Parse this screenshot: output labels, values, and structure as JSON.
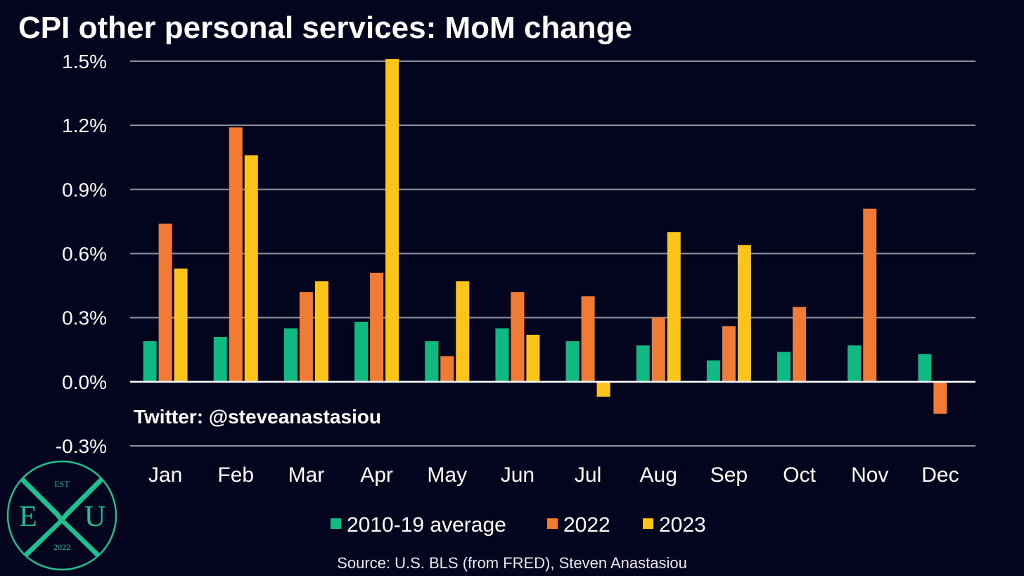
{
  "chart_data": {
    "type": "bar",
    "title": "CPI other personal services: MoM change",
    "categories": [
      "Jan",
      "Feb",
      "Mar",
      "Apr",
      "May",
      "Jun",
      "Jul",
      "Aug",
      "Sep",
      "Oct",
      "Nov",
      "Dec"
    ],
    "series": [
      {
        "name": "2010-19 average",
        "color": "#10b981",
        "values": [
          0.19,
          0.21,
          0.25,
          0.28,
          0.19,
          0.25,
          0.19,
          0.17,
          0.1,
          0.14,
          0.17,
          0.13
        ]
      },
      {
        "name": "2022",
        "color": "#f07b34",
        "values": [
          0.74,
          1.19,
          0.42,
          0.51,
          0.12,
          0.42,
          0.4,
          0.3,
          0.26,
          0.35,
          0.81,
          -0.15
        ]
      },
      {
        "name": "2023",
        "color": "#fcc419",
        "values": [
          0.53,
          1.06,
          0.47,
          1.51,
          0.47,
          0.22,
          -0.07,
          0.7,
          0.64,
          null,
          null,
          null
        ]
      }
    ],
    "ylim": [
      -0.3,
      1.5
    ],
    "yticks": [
      "1.5%",
      "1.2%",
      "0.9%",
      "0.6%",
      "0.3%",
      "0.0%",
      "-0.3%"
    ],
    "ytick_values": [
      1.5,
      1.2,
      0.9,
      0.6,
      0.3,
      0.0,
      -0.3
    ],
    "grid": true,
    "legend_position": "bottom"
  },
  "watermark": "Twitter: @steveanastasiou",
  "source": "Source: U.S. BLS (from FRED), Steven Anastasiou",
  "logo": {
    "top": "EST",
    "left": "E",
    "right": "U",
    "bottom": "2022",
    "mark": "X"
  }
}
